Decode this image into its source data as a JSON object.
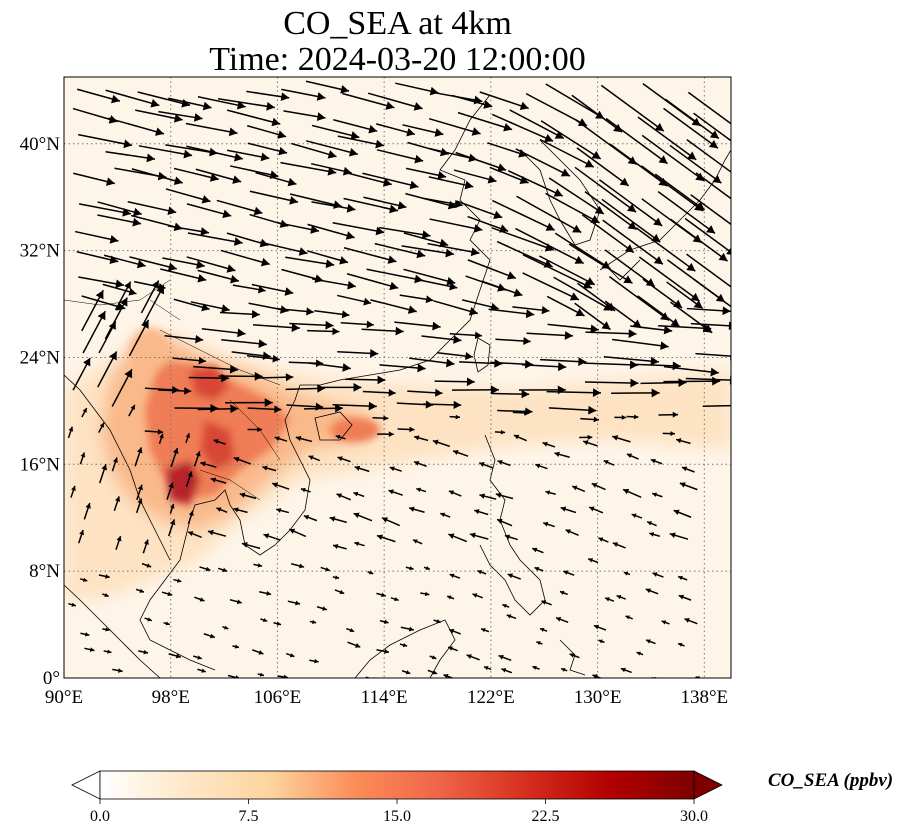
{
  "title": {
    "line1": "CO_SEA at 4km",
    "line2": "Time: 2024-03-20 12:00:00"
  },
  "map": {
    "extent_lon": [
      90,
      140
    ],
    "extent_lat": [
      0,
      45
    ],
    "lon_ticks": [
      {
        "value": 90,
        "label": "90°E"
      },
      {
        "value": 98,
        "label": "98°E"
      },
      {
        "value": 106,
        "label": "106°E"
      },
      {
        "value": 114,
        "label": "114°E"
      },
      {
        "value": 122,
        "label": "122°E"
      },
      {
        "value": 130,
        "label": "130°E"
      },
      {
        "value": 138,
        "label": "138°E"
      }
    ],
    "lat_ticks": [
      {
        "value": 0,
        "label": "0°"
      },
      {
        "value": 8,
        "label": "8°N"
      },
      {
        "value": 16,
        "label": "16°N"
      },
      {
        "value": 24,
        "label": "24°N"
      },
      {
        "value": 32,
        "label": "32°N"
      },
      {
        "value": 40,
        "label": "40°N"
      }
    ],
    "gridlines": true,
    "background_color": "#fef5e9",
    "plume_colors": [
      "#fde3c3",
      "#f9b98a",
      "#ef7d55",
      "#d84634",
      "#b8222a"
    ],
    "arrow_color": "#000000"
  },
  "colorbar": {
    "label": "CO_SEA (ppbv)",
    "min": 0.0,
    "max": 30.0,
    "ticks": [
      "0.0",
      "7.5",
      "15.0",
      "22.5",
      "30.0"
    ],
    "extend": "both",
    "colors": [
      "#ffffff",
      "#fee8c8",
      "#fdd49e",
      "#fc8d59",
      "#ef6548",
      "#d7301f",
      "#b30000",
      "#7f0000"
    ]
  }
}
